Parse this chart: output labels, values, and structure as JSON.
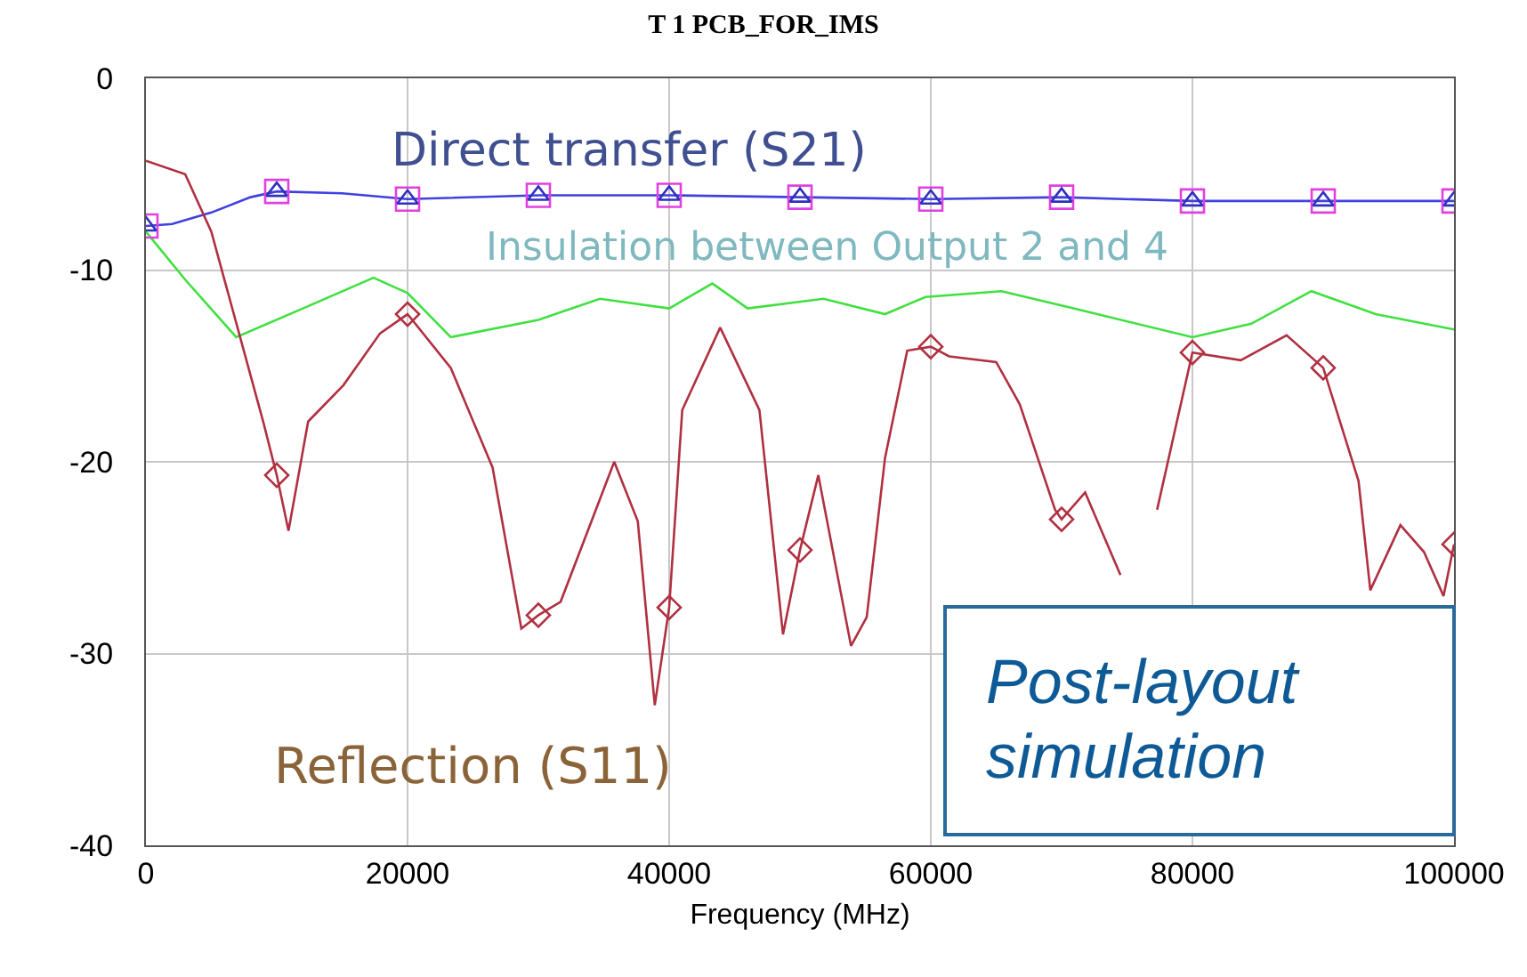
{
  "chart_data": {
    "type": "line",
    "title": "T 1 PCB_FOR_IMS",
    "xlabel": "Frequency (MHz)",
    "xlim": [
      0,
      100000
    ],
    "xticks": [
      0,
      20000,
      40000,
      60000,
      80000,
      100000
    ],
    "ylim": [
      -40,
      0
    ],
    "yticks": [
      0,
      -10,
      -20,
      -30,
      -40
    ],
    "grid": true,
    "line_style": "solid",
    "annotations": [
      "Direct transfer (S21)",
      "Insulation between Output 2 and 4",
      "Reflection (S11)",
      "Post-layout simulation"
    ],
    "series": [
      {
        "color": "#4040e0",
        "marker": "none",
        "x": [
          0,
          2000,
          5000,
          8000,
          10000,
          15000,
          20000,
          30000,
          40000,
          50000,
          60000,
          70000,
          80000,
          90000,
          100000
        ],
        "values": [
          -7.7,
          -7.6,
          -7.0,
          -6.2,
          -5.9,
          -6.0,
          -6.3,
          -6.1,
          -6.1,
          -6.2,
          -6.3,
          -6.2,
          -6.4,
          -6.4,
          -6.4
        ]
      },
      {
        "color": "#40e040",
        "marker": "none",
        "x": [
          0,
          3000,
          6900,
          12000,
          17400,
          20000,
          23300,
          30000,
          34700,
          40000,
          43300,
          46000,
          51800,
          56500,
          59600,
          65400,
          70900,
          80000,
          84500,
          89100,
          94000,
          100000
        ],
        "values": [
          -8.0,
          -10.5,
          -13.5,
          -12.0,
          -10.4,
          -11.2,
          -13.5,
          -12.6,
          -11.5,
          -12.0,
          -10.7,
          -12.0,
          -11.5,
          -12.3,
          -11.4,
          -11.1,
          -12.0,
          -13.5,
          -12.8,
          -11.1,
          -12.3,
          -13.1
        ]
      },
      {
        "color": "#b03040",
        "marker": "none",
        "x": [
          0,
          3000,
          5000,
          7000,
          9000,
          10000,
          10900,
          12400,
          15100,
          17900,
          20000,
          23300,
          26500,
          28700,
          30000,
          31700,
          35800,
          37600,
          38900,
          40000,
          41000,
          43900,
          46900,
          48700,
          50000,
          51400,
          53900,
          55100,
          56500,
          58200,
          60000,
          61400,
          65000,
          66800,
          69500,
          70000,
          71800,
          74500,
          76500,
          77300,
          80000,
          83700,
          87200,
          90000,
          92700,
          93600,
          95900,
          97700,
          99200,
          100000
        ],
        "values": [
          -4.3,
          -5.0,
          -8.0,
          -13.0,
          -18.0,
          -20.7,
          -23.6,
          -17.9,
          -16.0,
          -13.3,
          -12.3,
          -15.1,
          -20.3,
          -28.7,
          -28.0,
          -27.3,
          -20.0,
          -23.1,
          -32.7,
          -27.6,
          -17.3,
          -13.0,
          -17.3,
          -29.0,
          -24.6,
          -20.7,
          -29.6,
          -28.1,
          -19.8,
          -14.2,
          -14.0,
          -14.5,
          -14.8,
          -17.0,
          -22.5,
          -23.0,
          -21.6,
          -25.9,
          null,
          -22.5,
          -14.3,
          -14.7,
          -13.4,
          -15.1,
          -21.0,
          -26.7,
          -23.3,
          -24.7,
          -27.0,
          -24.3
        ]
      },
      {
        "type": "scatter",
        "color": "#e040e0",
        "marker": "square",
        "x": [
          0,
          10000,
          20000,
          30000,
          40000,
          50000,
          60000,
          70000,
          80000,
          90000,
          100000
        ],
        "values": [
          -7.7,
          -5.9,
          -6.3,
          -6.1,
          -6.1,
          -6.2,
          -6.3,
          -6.2,
          -6.4,
          -6.4,
          -6.4
        ]
      },
      {
        "type": "scatter",
        "color": "#3030c0",
        "marker": "triangle",
        "x": [
          0,
          10000,
          20000,
          30000,
          40000,
          50000,
          60000,
          70000,
          80000,
          90000,
          100000
        ],
        "values": [
          -7.7,
          -5.9,
          -6.3,
          -6.1,
          -6.1,
          -6.2,
          -6.3,
          -6.2,
          -6.4,
          -6.4,
          -6.4
        ]
      },
      {
        "type": "scatter",
        "color": "#b03040",
        "marker": "diamond",
        "x": [
          10000,
          20000,
          30000,
          40000,
          50000,
          60000,
          70000,
          80000,
          90000,
          100000
        ],
        "values": [
          -20.7,
          -12.3,
          -28.0,
          -27.6,
          -24.6,
          -14.0,
          -23.0,
          -14.3,
          -15.1,
          -24.3
        ]
      }
    ]
  }
}
